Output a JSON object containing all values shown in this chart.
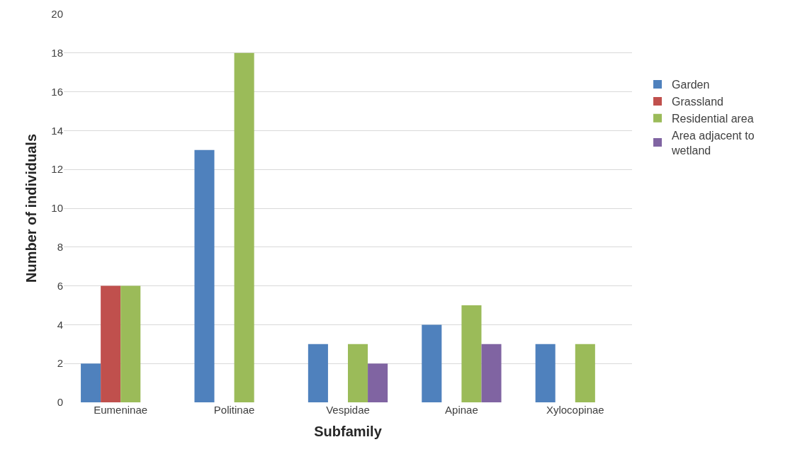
{
  "chart_data": {
    "type": "bar",
    "xlabel": "Subfamily",
    "ylabel": "Number of individuals",
    "categories": [
      "Eumeninae",
      "Politinae",
      "Vespidae",
      "Apinae",
      "Xylocopinae"
    ],
    "series": [
      {
        "name": "Garden",
        "color": "#4f81bd",
        "values": [
          2,
          13,
          3,
          4,
          3
        ]
      },
      {
        "name": "Grassland",
        "color": "#c0504d",
        "values": [
          6,
          0,
          0,
          0,
          0
        ]
      },
      {
        "name": "Residential area",
        "color": "#9bbb59",
        "values": [
          6,
          18,
          3,
          5,
          3
        ]
      },
      {
        "name": "Area adjacent to wetland",
        "color": "#8064a2",
        "values": [
          0,
          0,
          2,
          3,
          0
        ]
      }
    ],
    "ylim": [
      0,
      20
    ],
    "yticks": [
      0,
      2,
      4,
      6,
      8,
      10,
      12,
      14,
      16,
      18,
      20
    ],
    "grid": "y",
    "legend": "right"
  }
}
